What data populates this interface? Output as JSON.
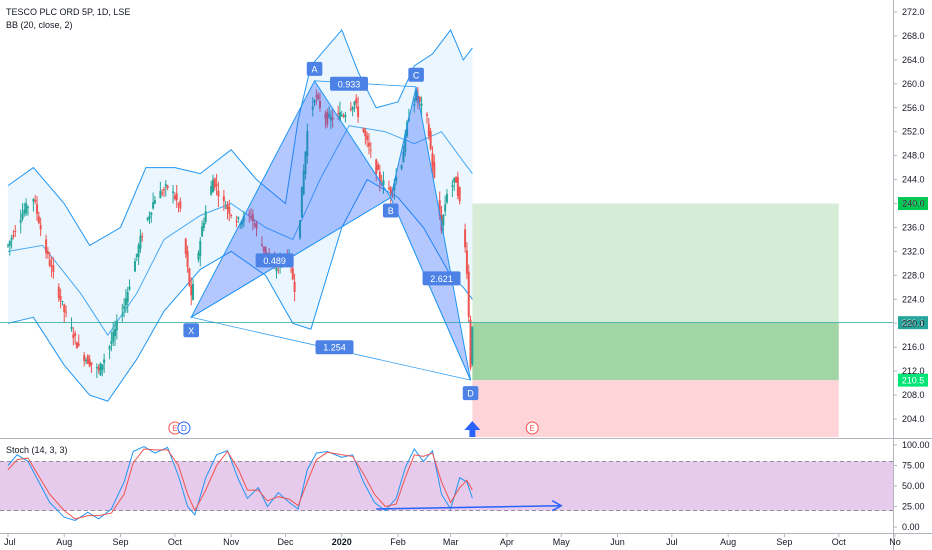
{
  "header": {
    "symbol_title": "TESCO PLC ORD 5P, 1D, LSE",
    "bb_label": "BB (20, close, 2)",
    "stoch_label": "Stoch (14, 3, 3)"
  },
  "colors": {
    "candle_up": "#26a69a",
    "candle_down": "#ef5350",
    "bb_line": "#2196f3",
    "bb_fill": "#e3f2fd",
    "pattern_fill": "#2962ff",
    "label_bg": "#4c82e6",
    "profit_zone": "#c8e6c9",
    "profit_zone_strong": "#81c784",
    "loss_zone": "#ffcdd2",
    "stoch_band": "#e1bee7",
    "price_line": "#26a69a",
    "axis_text": "#131722"
  },
  "chart_data": [
    {
      "type": "candlestick",
      "title": "TESCO PLC ORD 5P, 1D, LSE",
      "x_axis": {
        "ticks": [
          "Jul",
          "Aug",
          "Sep",
          "Oct",
          "Nov",
          "Dec",
          "2020",
          "Feb",
          "Mar",
          "Apr",
          "May",
          "Jun",
          "Jul",
          "Aug",
          "Sep",
          "Oct",
          "No"
        ],
        "tick_dates": [
          "2019-07-01",
          "2019-08-01",
          "2019-09-01",
          "2019-10-01",
          "2019-11-01",
          "2019-12-01",
          "2020-01-01",
          "2020-02-01",
          "2020-03-01",
          "2020-04-01",
          "2020-05-01",
          "2020-06-01",
          "2020-07-01",
          "2020-08-01",
          "2020-09-01",
          "2020-10-01",
          "2020-11-01"
        ]
      },
      "y_axis": {
        "ticks": [
          "204.0",
          "208.0",
          "212.0",
          "216.0",
          "220.0",
          "224.0",
          "228.0",
          "232.0",
          "236.0",
          "240.0",
          "244.0",
          "248.0",
          "252.0",
          "256.0",
          "260.0",
          "264.0",
          "268.0",
          "272.0"
        ],
        "range": [
          201,
          274
        ]
      },
      "price_path": [
        [
          "2019-07-01",
          233
        ],
        [
          "2019-07-08",
          238
        ],
        [
          "2019-07-15",
          241
        ],
        [
          "2019-07-22",
          232
        ],
        [
          "2019-08-01",
          222
        ],
        [
          "2019-08-10",
          215
        ],
        [
          "2019-08-20",
          212
        ],
        [
          "2019-08-27",
          217
        ],
        [
          "2019-09-03",
          223
        ],
        [
          "2019-09-12",
          234
        ],
        [
          "2019-09-20",
          241
        ],
        [
          "2019-09-28",
          243
        ],
        [
          "2019-10-04",
          239
        ],
        [
          "2019-10-10",
          224
        ],
        [
          "2019-10-16",
          236
        ],
        [
          "2019-10-22",
          244
        ],
        [
          "2019-10-28",
          240
        ],
        [
          "2019-11-05",
          237
        ],
        [
          "2019-11-12",
          238
        ],
        [
          "2019-11-18",
          233
        ],
        [
          "2019-11-25",
          229
        ],
        [
          "2019-12-02",
          232
        ],
        [
          "2019-12-06",
          226
        ],
        [
          "2019-12-10",
          242
        ],
        [
          "2019-12-13",
          252
        ],
        [
          "2019-12-17",
          258
        ],
        [
          "2019-12-24",
          254
        ],
        [
          "2020-01-02",
          255
        ],
        [
          "2020-01-08",
          257
        ],
        [
          "2020-01-15",
          250
        ],
        [
          "2020-01-22",
          244
        ],
        [
          "2020-01-28",
          242
        ],
        [
          "2020-02-03",
          247
        ],
        [
          "2020-02-07",
          255
        ],
        [
          "2020-02-11",
          258
        ],
        [
          "2020-02-17",
          254
        ],
        [
          "2020-02-21",
          244
        ],
        [
          "2020-02-25",
          236
        ],
        [
          "2020-02-28",
          242
        ],
        [
          "2020-03-04",
          244
        ],
        [
          "2020-03-08",
          236
        ],
        [
          "2020-03-10",
          229
        ],
        [
          "2020-03-12",
          213
        ],
        [
          "2020-03-13",
          220
        ]
      ],
      "bollinger_bands": {
        "label": "BB (20, close, 2)",
        "upper": [
          [
            "2019-07-01",
            243
          ],
          [
            "2019-07-15",
            246
          ],
          [
            "2019-08-01",
            240
          ],
          [
            "2019-08-15",
            233
          ],
          [
            "2019-09-01",
            236
          ],
          [
            "2019-09-15",
            246
          ],
          [
            "2019-10-01",
            246
          ],
          [
            "2019-10-15",
            245
          ],
          [
            "2019-11-01",
            249
          ],
          [
            "2019-11-15",
            244
          ],
          [
            "2019-12-01",
            240
          ],
          [
            "2019-12-08",
            254
          ],
          [
            "2019-12-15",
            263
          ],
          [
            "2020-01-01",
            269
          ],
          [
            "2020-01-10",
            262
          ],
          [
            "2020-01-20",
            256
          ],
          [
            "2020-02-01",
            257
          ],
          [
            "2020-02-10",
            263
          ],
          [
            "2020-02-20",
            265
          ],
          [
            "2020-03-01",
            269
          ],
          [
            "2020-03-08",
            264
          ],
          [
            "2020-03-13",
            266
          ]
        ],
        "basis": [
          [
            "2019-07-01",
            232
          ],
          [
            "2019-07-20",
            233
          ],
          [
            "2019-08-10",
            225
          ],
          [
            "2019-08-25",
            218
          ],
          [
            "2019-09-10",
            225
          ],
          [
            "2019-09-25",
            234
          ],
          [
            "2019-10-15",
            238
          ],
          [
            "2019-11-01",
            240
          ],
          [
            "2019-11-20",
            236
          ],
          [
            "2019-12-05",
            234
          ],
          [
            "2019-12-20",
            244
          ],
          [
            "2020-01-05",
            253
          ],
          [
            "2020-01-25",
            252
          ],
          [
            "2020-02-10",
            250
          ],
          [
            "2020-02-25",
            252
          ],
          [
            "2020-03-08",
            247
          ],
          [
            "2020-03-13",
            245
          ]
        ],
        "lower": [
          [
            "2019-07-01",
            220
          ],
          [
            "2019-07-15",
            221
          ],
          [
            "2019-08-01",
            213
          ],
          [
            "2019-08-15",
            208
          ],
          [
            "2019-08-25",
            207
          ],
          [
            "2019-09-10",
            214
          ],
          [
            "2019-09-25",
            222
          ],
          [
            "2019-10-15",
            229
          ],
          [
            "2019-11-01",
            232
          ],
          [
            "2019-11-20",
            228
          ],
          [
            "2019-12-05",
            220
          ],
          [
            "2019-12-15",
            219
          ],
          [
            "2020-01-01",
            236
          ],
          [
            "2020-01-15",
            244
          ],
          [
            "2020-02-01",
            241
          ],
          [
            "2020-02-15",
            236
          ],
          [
            "2020-03-01",
            228
          ],
          [
            "2020-03-08",
            226
          ],
          [
            "2020-03-13",
            224
          ]
        ]
      },
      "harmonic_pattern": {
        "points": [
          {
            "label": "X",
            "date": "2019-10-10",
            "price": 221
          },
          {
            "label": "A",
            "date": "2019-12-17",
            "price": 260.5
          },
          {
            "label": "B",
            "date": "2020-01-28",
            "price": 241
          },
          {
            "label": "C",
            "date": "2020-02-11",
            "price": 259.5
          },
          {
            "label": "D",
            "date": "2020-03-12",
            "price": 210.5
          }
        ],
        "ratios": [
          {
            "text": "0.933",
            "date": "2020-01-05",
            "price": 260
          },
          {
            "text": "0.489",
            "date": "2019-11-25",
            "price": 230.5
          },
          {
            "text": "2.621",
            "date": "2020-02-25",
            "price": 227.5
          },
          {
            "text": "1.254",
            "date": "2019-12-28",
            "price": 216
          }
        ]
      },
      "position": {
        "take_profit": 240.0,
        "entry": 220.1,
        "stop": 210.5,
        "start_date": "2020-03-13",
        "end_date": "2020-10-01"
      },
      "price_labels": [
        {
          "text": "240.0",
          "value": 240.0,
          "color": "#00c853"
        },
        {
          "text": "220.1",
          "value": 220.1,
          "color": "#26a69a"
        },
        {
          "text": "210.5",
          "value": 210.5,
          "color": "#00e676"
        }
      ],
      "events": [
        {
          "text": "E",
          "date": "2019-10-01",
          "color": "#ef5350"
        },
        {
          "text": "D",
          "date": "2019-10-06",
          "color": "#2962ff"
        },
        {
          "text": "E",
          "date": "2020-04-15",
          "color": "#ef5350"
        }
      ],
      "up_arrow": {
        "date": "2020-03-13"
      }
    },
    {
      "type": "line",
      "title": "Stoch (14, 3, 3)",
      "y_axis": {
        "ticks": [
          "0.00",
          "25.00",
          "50.00",
          "75.00",
          "100.00"
        ],
        "range": [
          -6,
          106
        ]
      },
      "bands": {
        "upper": 80,
        "lower": 20
      },
      "series": [
        {
          "color": "#2196f3",
          "points": [
            [
              "2019-07-01",
              75
            ],
            [
              "2019-07-06",
              88
            ],
            [
              "2019-07-12",
              80
            ],
            [
              "2019-07-18",
              55
            ],
            [
              "2019-07-24",
              30
            ],
            [
              "2019-08-01",
              12
            ],
            [
              "2019-08-07",
              8
            ],
            [
              "2019-08-14",
              18
            ],
            [
              "2019-08-20",
              10
            ],
            [
              "2019-08-27",
              22
            ],
            [
              "2019-09-03",
              55
            ],
            [
              "2019-09-08",
              92
            ],
            [
              "2019-09-14",
              98
            ],
            [
              "2019-09-20",
              90
            ],
            [
              "2019-09-27",
              97
            ],
            [
              "2019-10-03",
              62
            ],
            [
              "2019-10-08",
              25
            ],
            [
              "2019-10-12",
              15
            ],
            [
              "2019-10-18",
              60
            ],
            [
              "2019-10-24",
              88
            ],
            [
              "2019-10-30",
              93
            ],
            [
              "2019-11-05",
              58
            ],
            [
              "2019-11-10",
              35
            ],
            [
              "2019-11-16",
              48
            ],
            [
              "2019-11-21",
              25
            ],
            [
              "2019-11-27",
              42
            ],
            [
              "2019-12-03",
              30
            ],
            [
              "2019-12-08",
              22
            ],
            [
              "2019-12-13",
              70
            ],
            [
              "2019-12-18",
              90
            ],
            [
              "2019-12-24",
              92
            ],
            [
              "2020-01-01",
              85
            ],
            [
              "2020-01-07",
              88
            ],
            [
              "2020-01-13",
              55
            ],
            [
              "2020-01-19",
              30
            ],
            [
              "2020-01-25",
              20
            ],
            [
              "2020-01-31",
              35
            ],
            [
              "2020-02-05",
              72
            ],
            [
              "2020-02-10",
              95
            ],
            [
              "2020-02-15",
              80
            ],
            [
              "2020-02-20",
              93
            ],
            [
              "2020-02-25",
              40
            ],
            [
              "2020-03-01",
              22
            ],
            [
              "2020-03-06",
              60
            ],
            [
              "2020-03-10",
              55
            ],
            [
              "2020-03-13",
              35
            ]
          ]
        },
        {
          "color": "#ef5350",
          "points": [
            [
              "2019-07-01",
              70
            ],
            [
              "2019-07-06",
              82
            ],
            [
              "2019-07-12",
              84
            ],
            [
              "2019-07-18",
              62
            ],
            [
              "2019-07-24",
              40
            ],
            [
              "2019-08-01",
              20
            ],
            [
              "2019-08-07",
              10
            ],
            [
              "2019-08-14",
              14
            ],
            [
              "2019-08-20",
              14
            ],
            [
              "2019-08-27",
              17
            ],
            [
              "2019-09-03",
              40
            ],
            [
              "2019-09-08",
              78
            ],
            [
              "2019-09-14",
              95
            ],
            [
              "2019-09-20",
              94
            ],
            [
              "2019-09-27",
              94
            ],
            [
              "2019-10-03",
              75
            ],
            [
              "2019-10-08",
              40
            ],
            [
              "2019-10-12",
              20
            ],
            [
              "2019-10-18",
              45
            ],
            [
              "2019-10-24",
              75
            ],
            [
              "2019-10-30",
              92
            ],
            [
              "2019-11-05",
              70
            ],
            [
              "2019-11-10",
              45
            ],
            [
              "2019-11-16",
              45
            ],
            [
              "2019-11-21",
              32
            ],
            [
              "2019-11-27",
              37
            ],
            [
              "2019-12-03",
              34
            ],
            [
              "2019-12-08",
              26
            ],
            [
              "2019-12-13",
              55
            ],
            [
              "2019-12-18",
              82
            ],
            [
              "2019-12-24",
              91
            ],
            [
              "2020-01-01",
              88
            ],
            [
              "2020-01-07",
              86
            ],
            [
              "2020-01-13",
              65
            ],
            [
              "2020-01-19",
              40
            ],
            [
              "2020-01-25",
              25
            ],
            [
              "2020-01-31",
              28
            ],
            [
              "2020-02-05",
              60
            ],
            [
              "2020-02-10",
              88
            ],
            [
              "2020-02-15",
              86
            ],
            [
              "2020-02-20",
              90
            ],
            [
              "2020-02-25",
              55
            ],
            [
              "2020-03-01",
              30
            ],
            [
              "2020-03-06",
              48
            ],
            [
              "2020-03-10",
              57
            ],
            [
              "2020-03-13",
              45
            ]
          ]
        }
      ],
      "trend_arrow": {
        "from": [
          "2020-01-20",
          22
        ],
        "to": [
          "2020-05-01",
          26
        ]
      }
    }
  ]
}
